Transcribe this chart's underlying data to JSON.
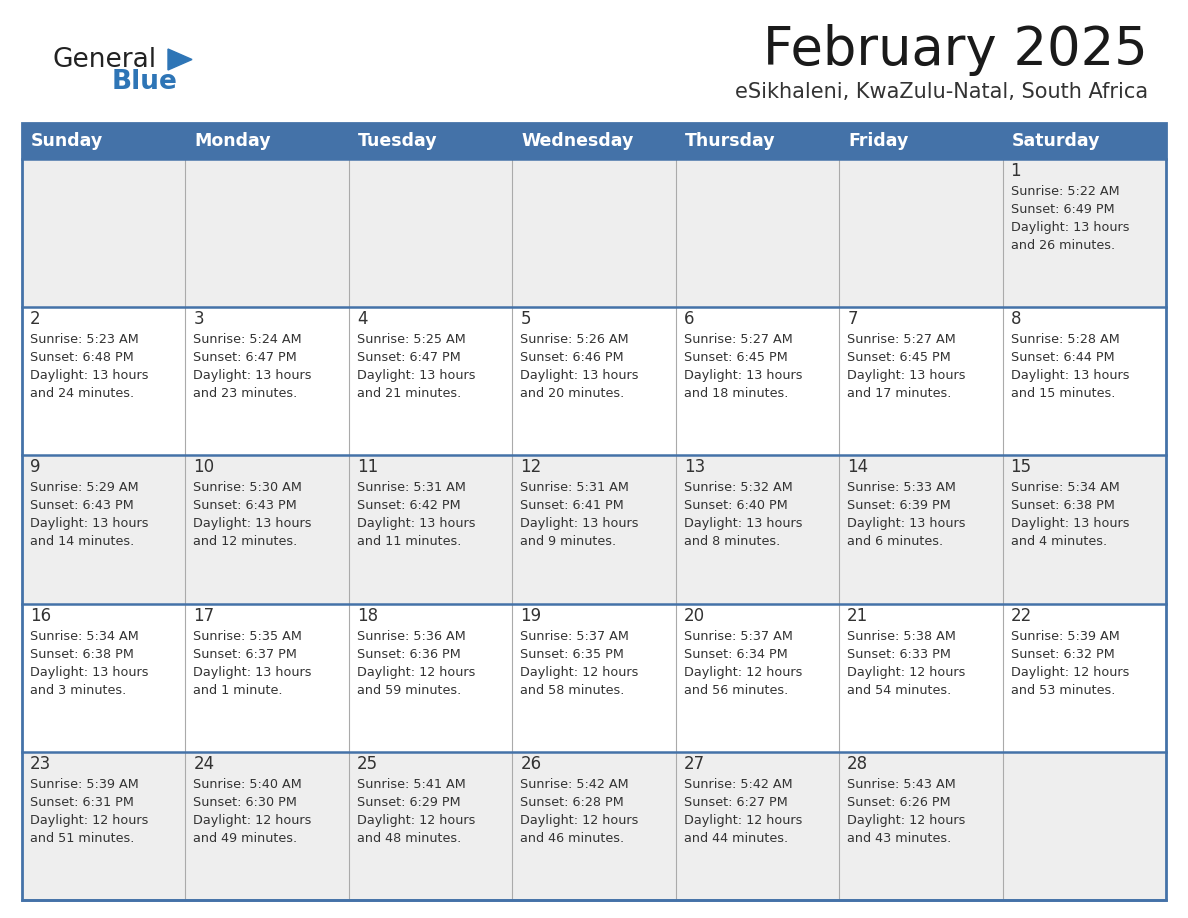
{
  "title": "February 2025",
  "subtitle": "eSikhaleni, KwaZulu-Natal, South Africa",
  "days_of_week": [
    "Sunday",
    "Monday",
    "Tuesday",
    "Wednesday",
    "Thursday",
    "Friday",
    "Saturday"
  ],
  "header_bg": "#4472a8",
  "header_text": "#ffffff",
  "row_bg_odd": "#eeeeee",
  "row_bg_even": "#ffffff",
  "day_number_color": "#333333",
  "cell_text_color": "#333333",
  "border_color": "#4472a8",
  "divider_color": "#aaaaaa",
  "calendar_data": [
    [
      null,
      null,
      null,
      null,
      null,
      null,
      {
        "day": 1,
        "sunrise": "5:22 AM",
        "sunset": "6:49 PM",
        "daylight": "13 hours\nand 26 minutes."
      }
    ],
    [
      {
        "day": 2,
        "sunrise": "5:23 AM",
        "sunset": "6:48 PM",
        "daylight": "13 hours\nand 24 minutes."
      },
      {
        "day": 3,
        "sunrise": "5:24 AM",
        "sunset": "6:47 PM",
        "daylight": "13 hours\nand 23 minutes."
      },
      {
        "day": 4,
        "sunrise": "5:25 AM",
        "sunset": "6:47 PM",
        "daylight": "13 hours\nand 21 minutes."
      },
      {
        "day": 5,
        "sunrise": "5:26 AM",
        "sunset": "6:46 PM",
        "daylight": "13 hours\nand 20 minutes."
      },
      {
        "day": 6,
        "sunrise": "5:27 AM",
        "sunset": "6:45 PM",
        "daylight": "13 hours\nand 18 minutes."
      },
      {
        "day": 7,
        "sunrise": "5:27 AM",
        "sunset": "6:45 PM",
        "daylight": "13 hours\nand 17 minutes."
      },
      {
        "day": 8,
        "sunrise": "5:28 AM",
        "sunset": "6:44 PM",
        "daylight": "13 hours\nand 15 minutes."
      }
    ],
    [
      {
        "day": 9,
        "sunrise": "5:29 AM",
        "sunset": "6:43 PM",
        "daylight": "13 hours\nand 14 minutes."
      },
      {
        "day": 10,
        "sunrise": "5:30 AM",
        "sunset": "6:43 PM",
        "daylight": "13 hours\nand 12 minutes."
      },
      {
        "day": 11,
        "sunrise": "5:31 AM",
        "sunset": "6:42 PM",
        "daylight": "13 hours\nand 11 minutes."
      },
      {
        "day": 12,
        "sunrise": "5:31 AM",
        "sunset": "6:41 PM",
        "daylight": "13 hours\nand 9 minutes."
      },
      {
        "day": 13,
        "sunrise": "5:32 AM",
        "sunset": "6:40 PM",
        "daylight": "13 hours\nand 8 minutes."
      },
      {
        "day": 14,
        "sunrise": "5:33 AM",
        "sunset": "6:39 PM",
        "daylight": "13 hours\nand 6 minutes."
      },
      {
        "day": 15,
        "sunrise": "5:34 AM",
        "sunset": "6:38 PM",
        "daylight": "13 hours\nand 4 minutes."
      }
    ],
    [
      {
        "day": 16,
        "sunrise": "5:34 AM",
        "sunset": "6:38 PM",
        "daylight": "13 hours\nand 3 minutes."
      },
      {
        "day": 17,
        "sunrise": "5:35 AM",
        "sunset": "6:37 PM",
        "daylight": "13 hours\nand 1 minute."
      },
      {
        "day": 18,
        "sunrise": "5:36 AM",
        "sunset": "6:36 PM",
        "daylight": "12 hours\nand 59 minutes."
      },
      {
        "day": 19,
        "sunrise": "5:37 AM",
        "sunset": "6:35 PM",
        "daylight": "12 hours\nand 58 minutes."
      },
      {
        "day": 20,
        "sunrise": "5:37 AM",
        "sunset": "6:34 PM",
        "daylight": "12 hours\nand 56 minutes."
      },
      {
        "day": 21,
        "sunrise": "5:38 AM",
        "sunset": "6:33 PM",
        "daylight": "12 hours\nand 54 minutes."
      },
      {
        "day": 22,
        "sunrise": "5:39 AM",
        "sunset": "6:32 PM",
        "daylight": "12 hours\nand 53 minutes."
      }
    ],
    [
      {
        "day": 23,
        "sunrise": "5:39 AM",
        "sunset": "6:31 PM",
        "daylight": "12 hours\nand 51 minutes."
      },
      {
        "day": 24,
        "sunrise": "5:40 AM",
        "sunset": "6:30 PM",
        "daylight": "12 hours\nand 49 minutes."
      },
      {
        "day": 25,
        "sunrise": "5:41 AM",
        "sunset": "6:29 PM",
        "daylight": "12 hours\nand 48 minutes."
      },
      {
        "day": 26,
        "sunrise": "5:42 AM",
        "sunset": "6:28 PM",
        "daylight": "12 hours\nand 46 minutes."
      },
      {
        "day": 27,
        "sunrise": "5:42 AM",
        "sunset": "6:27 PM",
        "daylight": "12 hours\nand 44 minutes."
      },
      {
        "day": 28,
        "sunrise": "5:43 AM",
        "sunset": "6:26 PM",
        "daylight": "12 hours\nand 43 minutes."
      },
      null
    ]
  ],
  "logo_text_general": "General",
  "logo_text_blue": "Blue",
  "logo_triangle_color": "#2e75b6",
  "logo_general_color": "#222222",
  "logo_blue_color": "#2e75b6"
}
